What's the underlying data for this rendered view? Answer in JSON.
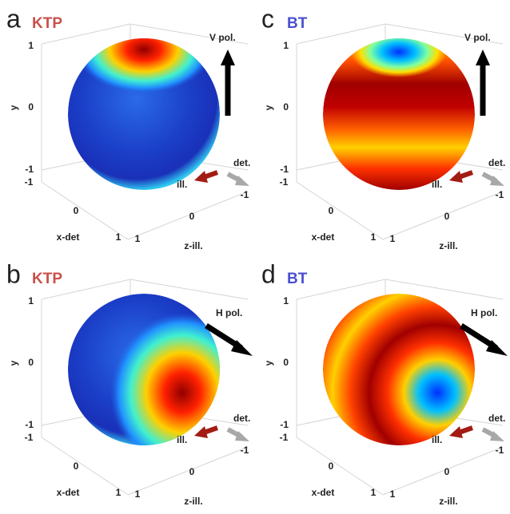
{
  "panels": [
    {
      "letter": "a",
      "material": "KTP",
      "pol": "V pol.",
      "y_label": "y",
      "x_label": "x-det",
      "z_label": "z-ill.",
      "det": "det.",
      "ill": "ill.",
      "y_ticks": [
        1,
        0,
        -1
      ],
      "x_ticks": [
        -1,
        0,
        1
      ],
      "z_ticks": [
        1,
        0,
        -1
      ]
    },
    {
      "letter": "b",
      "material": "KTP",
      "pol": "H pol.",
      "y_label": "y",
      "x_label": "x-det",
      "z_label": "z-ill.",
      "det": "det.",
      "ill": "ill.",
      "y_ticks": [
        1,
        0,
        -1
      ],
      "x_ticks": [
        -1,
        0,
        1
      ],
      "z_ticks": [
        1,
        0,
        -1
      ]
    },
    {
      "letter": "c",
      "material": "BT",
      "pol": "V pol.",
      "y_label": "y",
      "x_label": "x-det",
      "z_label": "z-ill.",
      "det": "det.",
      "ill": "ill.",
      "y_ticks": [
        1,
        0,
        -1
      ],
      "x_ticks": [
        -1,
        0,
        1
      ],
      "z_ticks": [
        1,
        0,
        -1
      ]
    },
    {
      "letter": "d",
      "material": "BT",
      "pol": "H pol.",
      "y_label": "y",
      "x_label": "x-det",
      "z_label": "z-ill.",
      "det": "det.",
      "ill": "ill.",
      "y_ticks": [
        1,
        0,
        -1
      ],
      "x_ticks": [
        -1,
        0,
        1
      ],
      "z_ticks": [
        1,
        0,
        -1
      ]
    }
  ]
}
